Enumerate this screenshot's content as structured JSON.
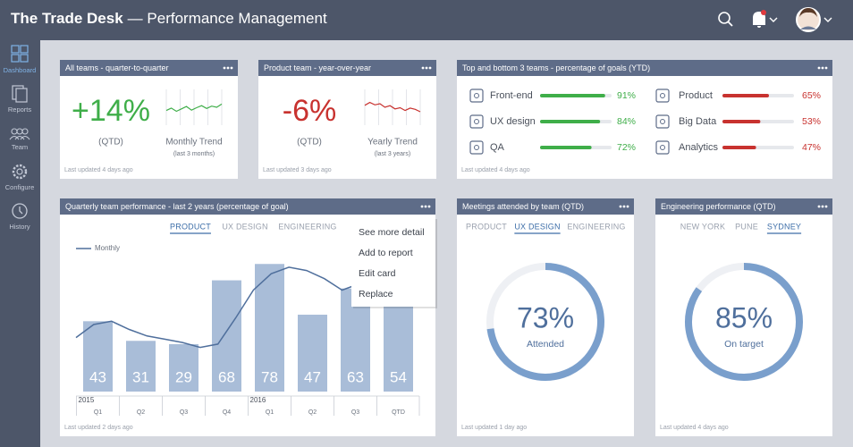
{
  "header": {
    "brand": "The Trade Desk",
    "title": "— Performance Management"
  },
  "sidebar": {
    "items": [
      "Dashboard",
      "Reports",
      "Team",
      "Configure",
      "History"
    ],
    "active": 0
  },
  "cards": {
    "qoq": {
      "title": "All teams - quarter-to-quarter",
      "headline": "+14%",
      "period": "(QTD)",
      "trend_title": "Monthly Trend",
      "trend_note": "(last 3 months)",
      "trend": [
        5.2,
        5.8,
        5.0,
        5.6,
        6.2,
        5.3,
        5.9,
        6.4,
        5.7,
        6.3,
        6.0,
        6.8
      ],
      "footer": "Last updated 4 days ago"
    },
    "yoy": {
      "title": "Product team - year-over-year",
      "headline": "-6%",
      "period": "(QTD)",
      "trend_title": "Yearly Trend",
      "trend_note": "(last 3 years)",
      "trend": [
        6.5,
        7.2,
        6.6,
        6.9,
        6.0,
        6.4,
        5.6,
        5.9,
        5.2,
        5.8,
        5.5,
        4.9
      ],
      "footer": "Last updated 3 days ago"
    },
    "top_bottom": {
      "title": "Top and bottom 3 teams - percentage of goals (YTD)",
      "top": [
        {
          "name": "Front-end",
          "value": 91,
          "value_label": "91%"
        },
        {
          "name": "UX design",
          "value": 84,
          "value_label": "84%"
        },
        {
          "name": "QA",
          "value": 72,
          "value_label": "72%"
        }
      ],
      "bottom": [
        {
          "name": "Product",
          "value": 65,
          "value_label": "65%"
        },
        {
          "name": "Big Data",
          "value": 53,
          "value_label": "53%"
        },
        {
          "name": "Analytics",
          "value": 47,
          "value_label": "47%"
        }
      ],
      "footer": "Last updated 4 days ago"
    },
    "quarterly": {
      "title": "Quarterly team performance - last 2 years (percentage of goal)",
      "tabs": [
        "PRODUCT",
        "UX DESIGN",
        "ENGINEERING"
      ],
      "active_tab": 0,
      "legend": "Monthly",
      "categories": [
        "Q1",
        "Q2",
        "Q3",
        "Q4",
        "Q1",
        "Q2",
        "Q3",
        "QTD"
      ],
      "years": [
        "2015",
        null,
        null,
        null,
        "2016",
        null,
        null,
        null
      ],
      "values": [
        43,
        31,
        29,
        68,
        78,
        47,
        63,
        54
      ],
      "ylim": [
        0,
        100
      ],
      "monthly": [
        33,
        41,
        43,
        38,
        34,
        32,
        30,
        27,
        29,
        45,
        62,
        72,
        76,
        74,
        69,
        62,
        66,
        65,
        64,
        66
      ],
      "menu": [
        "See more detail",
        "Add to report",
        "Edit card",
        "Replace"
      ],
      "footer": "Last updated 2 days ago"
    },
    "meetings": {
      "title": "Meetings attended by team (QTD)",
      "tabs": [
        "PRODUCT",
        "UX DESIGN",
        "ENGINEERING"
      ],
      "active_tab": 1,
      "value": 73,
      "value_label": "73%",
      "caption": "Attended",
      "footer": "Last updated 1 day ago"
    },
    "engineering": {
      "title": "Engineering performance (QTD)",
      "tabs": [
        "NEW YORK",
        "PUNE",
        "SYDNEY"
      ],
      "active_tab": 2,
      "value": 85,
      "value_label": "85%",
      "caption": "On target",
      "footer": "Last updated 4 days ago"
    }
  }
}
